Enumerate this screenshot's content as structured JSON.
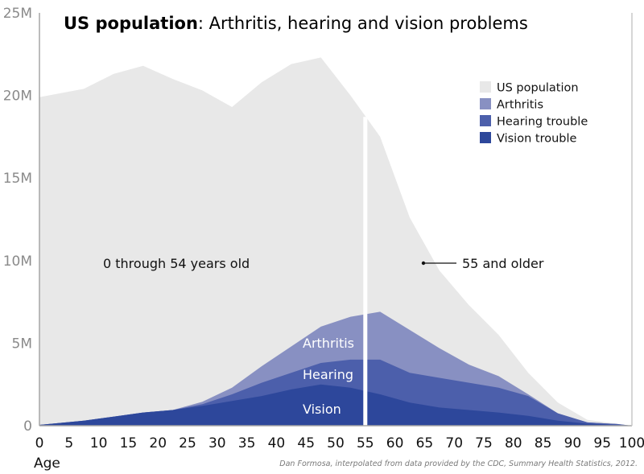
{
  "chart_data": {
    "type": "area",
    "stacked": true,
    "title_bold": "US population",
    "title_rest": ": Arthritis, hearing and vision problems",
    "xlabel": "Age",
    "ylabel": "",
    "xlim": [
      0,
      100
    ],
    "ylim": [
      0,
      25000000
    ],
    "x_ticks": [
      "0",
      "5",
      "10",
      "15",
      "20",
      "25",
      "30",
      "35",
      "40",
      "45",
      "50",
      "55",
      "60",
      "65",
      "70",
      "75",
      "80",
      "85",
      "90",
      "95",
      "100"
    ],
    "y_ticks": [
      {
        "value": 0,
        "label": "0"
      },
      {
        "value": 5000000,
        "label": "5M"
      },
      {
        "value": 10000000,
        "label": "10M"
      },
      {
        "value": 15000000,
        "label": "15M"
      },
      {
        "value": 20000000,
        "label": "20M"
      },
      {
        "value": 25000000,
        "label": "25M"
      }
    ],
    "grid": false,
    "legend_position": "top-right",
    "x": [
      0,
      7.5,
      12.5,
      17.5,
      22.5,
      27.5,
      32.5,
      37.5,
      42.5,
      47.5,
      52.5,
      57.5,
      62.5,
      67.5,
      72.5,
      77.5,
      82.5,
      87.5,
      92.5,
      97.5,
      100
    ],
    "series": [
      {
        "name": "US population",
        "color": "#e8e8e8",
        "values": [
          19.9,
          20.4,
          21.3,
          21.8,
          21.0,
          20.3,
          19.3,
          20.8,
          21.9,
          22.3,
          20.0,
          17.5,
          12.6,
          9.4,
          7.3,
          5.5,
          3.2,
          1.4,
          0.35,
          0.12,
          0
        ]
      },
      {
        "name": "Arthritis",
        "color": "#8890c2",
        "cumulative_top": [
          0.05,
          0.3,
          0.55,
          0.8,
          0.95,
          1.45,
          2.3,
          3.6,
          4.8,
          6.0,
          6.6,
          6.9,
          5.8,
          4.7,
          3.7,
          3.0,
          1.9,
          0.75,
          0.2,
          0.1,
          0
        ]
      },
      {
        "name": "Hearing trouble",
        "color": "#4c5fab",
        "cumulative_top": [
          0.05,
          0.3,
          0.55,
          0.8,
          0.95,
          1.3,
          1.9,
          2.6,
          3.2,
          3.8,
          4.0,
          4.0,
          3.2,
          2.9,
          2.6,
          2.3,
          1.8,
          0.75,
          0.2,
          0.1,
          0
        ]
      },
      {
        "name": "Vision trouble",
        "color": "#2d479b",
        "cumulative_top": [
          0.05,
          0.3,
          0.55,
          0.8,
          0.95,
          1.2,
          1.5,
          1.8,
          2.2,
          2.5,
          2.3,
          1.9,
          1.4,
          1.1,
          0.95,
          0.8,
          0.6,
          0.3,
          0.12,
          0.05,
          0
        ]
      }
    ],
    "divider_age": 55,
    "annotations": {
      "left_region": "0 through 54 years old",
      "right_region": "55 and older",
      "inner_arthritis": "Arthritis",
      "inner_hearing": "Hearing",
      "inner_vision": "Vision"
    },
    "credit": "Dan Formosa, interpolated from data provided by the CDC, Summary Health Statistics, 2012.",
    "value_unit": "millions"
  }
}
